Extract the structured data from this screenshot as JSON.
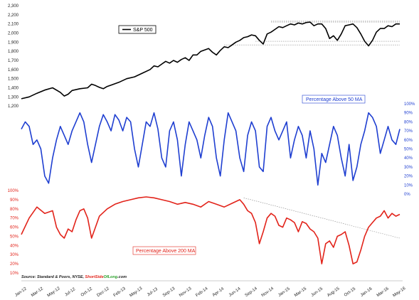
{
  "chart_data": [
    {
      "type": "line",
      "panel": "top",
      "series": [
        {
          "name": "S&P 500",
          "color": "#000000"
        }
      ],
      "ylim": [
        1100,
        2300
      ],
      "yticks": [
        "1,200",
        "1,300",
        "1,400",
        "1,500",
        "1,600",
        "1,700",
        "1,800",
        "1,900",
        "2,000",
        "2,100",
        "2,200",
        "2,300"
      ],
      "ytick_values": [
        1200,
        1300,
        1400,
        1500,
        1600,
        1700,
        1800,
        1900,
        2000,
        2100,
        2200,
        2300
      ],
      "points": [
        [
          0,
          1280
        ],
        [
          2,
          1300
        ],
        [
          4,
          1340
        ],
        [
          6,
          1375
        ],
        [
          8,
          1400
        ],
        [
          10,
          1350
        ],
        [
          11,
          1310
        ],
        [
          12,
          1330
        ],
        [
          13,
          1370
        ],
        [
          15,
          1390
        ],
        [
          17,
          1400
        ],
        [
          18,
          1440
        ],
        [
          19,
          1425
        ],
        [
          20,
          1405
        ],
        [
          21,
          1390
        ],
        [
          22,
          1415
        ],
        [
          23,
          1430
        ],
        [
          25,
          1460
        ],
        [
          27,
          1500
        ],
        [
          29,
          1520
        ],
        [
          31,
          1560
        ],
        [
          33,
          1600
        ],
        [
          34,
          1640
        ],
        [
          35,
          1630
        ],
        [
          36,
          1660
        ],
        [
          37,
          1690
        ],
        [
          38,
          1670
        ],
        [
          39,
          1700
        ],
        [
          40,
          1680
        ],
        [
          41,
          1710
        ],
        [
          42,
          1730
        ],
        [
          43,
          1700
        ],
        [
          44,
          1760
        ],
        [
          45,
          1760
        ],
        [
          46,
          1800
        ],
        [
          48,
          1830
        ],
        [
          49,
          1790
        ],
        [
          50,
          1760
        ],
        [
          51,
          1810
        ],
        [
          52,
          1850
        ],
        [
          53,
          1840
        ],
        [
          54,
          1870
        ],
        [
          55,
          1900
        ],
        [
          56,
          1920
        ],
        [
          57,
          1950
        ],
        [
          58,
          1960
        ],
        [
          59,
          1980
        ],
        [
          60,
          1970
        ],
        [
          61,
          1920
        ],
        [
          62,
          1880
        ],
        [
          63,
          1990
        ],
        [
          64,
          2010
        ],
        [
          65,
          2040
        ],
        [
          66,
          2070
        ],
        [
          67,
          2060
        ],
        [
          68,
          2080
        ],
        [
          69,
          2100
        ],
        [
          70,
          2090
        ],
        [
          71,
          2110
        ],
        [
          72,
          2100
        ],
        [
          73,
          2115
        ],
        [
          74,
          2120
        ],
        [
          75,
          2080
        ],
        [
          76,
          2100
        ],
        [
          77,
          2100
        ],
        [
          78,
          2050
        ],
        [
          79,
          1940
        ],
        [
          80,
          1970
        ],
        [
          81,
          1920
        ],
        [
          82,
          1990
        ],
        [
          83,
          2080
        ],
        [
          84,
          2090
        ],
        [
          85,
          2100
        ],
        [
          86,
          2060
        ],
        [
          87,
          1990
        ],
        [
          88,
          1910
        ],
        [
          89,
          1860
        ],
        [
          90,
          1920
        ],
        [
          91,
          2010
        ],
        [
          92,
          2050
        ],
        [
          93,
          2050
        ],
        [
          94,
          2080
        ],
        [
          95,
          2070
        ],
        [
          96,
          2100
        ],
        [
          97,
          2100
        ]
      ],
      "annotations": {
        "resistance": [
          2120,
          2130
        ],
        "support": [
          1870,
          1910
        ]
      }
    },
    {
      "type": "line",
      "panel": "middle",
      "series": [
        {
          "name": "Percentage Above 50 MA",
          "color": "#1f3fd1"
        }
      ],
      "ylim": [
        0,
        100
      ],
      "yticks": [
        "0%",
        "10%",
        "20%",
        "30%",
        "40%",
        "50%",
        "60%",
        "70%",
        "80%",
        "90%",
        "100%"
      ],
      "ytick_values": [
        0,
        10,
        20,
        30,
        40,
        50,
        60,
        70,
        80,
        90,
        100
      ],
      "points": [
        [
          0,
          72
        ],
        [
          1,
          80
        ],
        [
          2,
          75
        ],
        [
          3,
          55
        ],
        [
          4,
          60
        ],
        [
          5,
          50
        ],
        [
          6,
          20
        ],
        [
          7,
          12
        ],
        [
          8,
          40
        ],
        [
          9,
          60
        ],
        [
          10,
          75
        ],
        [
          11,
          65
        ],
        [
          12,
          55
        ],
        [
          13,
          70
        ],
        [
          14,
          80
        ],
        [
          15,
          90
        ],
        [
          16,
          80
        ],
        [
          17,
          55
        ],
        [
          18,
          35
        ],
        [
          19,
          55
        ],
        [
          20,
          75
        ],
        [
          21,
          88
        ],
        [
          22,
          80
        ],
        [
          23,
          70
        ],
        [
          24,
          88
        ],
        [
          25,
          82
        ],
        [
          26,
          70
        ],
        [
          27,
          85
        ],
        [
          28,
          80
        ],
        [
          29,
          50
        ],
        [
          30,
          30
        ],
        [
          31,
          55
        ],
        [
          32,
          80
        ],
        [
          33,
          75
        ],
        [
          34,
          90
        ],
        [
          35,
          72
        ],
        [
          36,
          40
        ],
        [
          37,
          30
        ],
        [
          38,
          70
        ],
        [
          39,
          80
        ],
        [
          40,
          60
        ],
        [
          41,
          20
        ],
        [
          42,
          55
        ],
        [
          43,
          80
        ],
        [
          44,
          70
        ],
        [
          45,
          60
        ],
        [
          46,
          40
        ],
        [
          47,
          65
        ],
        [
          48,
          85
        ],
        [
          49,
          75
        ],
        [
          50,
          40
        ],
        [
          51,
          20
        ],
        [
          52,
          60
        ],
        [
          53,
          90
        ],
        [
          54,
          80
        ],
        [
          55,
          70
        ],
        [
          56,
          40
        ],
        [
          57,
          25
        ],
        [
          58,
          65
        ],
        [
          59,
          80
        ],
        [
          60,
          70
        ],
        [
          61,
          30
        ],
        [
          62,
          25
        ],
        [
          63,
          75
        ],
        [
          64,
          85
        ],
        [
          65,
          70
        ],
        [
          66,
          60
        ],
        [
          67,
          70
        ],
        [
          68,
          80
        ],
        [
          69,
          40
        ],
        [
          70,
          60
        ],
        [
          71,
          75
        ],
        [
          72,
          65
        ],
        [
          73,
          40
        ],
        [
          74,
          70
        ],
        [
          75,
          50
        ],
        [
          76,
          10
        ],
        [
          77,
          45
        ],
        [
          78,
          35
        ],
        [
          79,
          55
        ],
        [
          80,
          75
        ],
        [
          81,
          65
        ],
        [
          82,
          40
        ],
        [
          83,
          20
        ],
        [
          84,
          55
        ],
        [
          85,
          15
        ],
        [
          86,
          30
        ],
        [
          87,
          55
        ],
        [
          88,
          70
        ],
        [
          89,
          90
        ],
        [
          90,
          85
        ],
        [
          91,
          75
        ],
        [
          92,
          45
        ],
        [
          93,
          60
        ],
        [
          94,
          75
        ],
        [
          95,
          60
        ],
        [
          96,
          55
        ],
        [
          97,
          72
        ]
      ]
    },
    {
      "type": "line",
      "panel": "bottom",
      "series": [
        {
          "name": "Percentage Above 200 MA",
          "color": "#e2231a"
        }
      ],
      "ylim": [
        10,
        100
      ],
      "yticks": [
        "10%",
        "20%",
        "30%",
        "40%",
        "50%",
        "60%",
        "70%",
        "80%",
        "90%",
        "100%"
      ],
      "ytick_values": [
        10,
        20,
        30,
        40,
        50,
        60,
        70,
        80,
        90,
        100
      ],
      "points": [
        [
          0,
          52
        ],
        [
          2,
          70
        ],
        [
          4,
          82
        ],
        [
          6,
          75
        ],
        [
          8,
          78
        ],
        [
          9,
          60
        ],
        [
          10,
          52
        ],
        [
          11,
          48
        ],
        [
          12,
          58
        ],
        [
          13,
          55
        ],
        [
          14,
          68
        ],
        [
          15,
          78
        ],
        [
          16,
          80
        ],
        [
          17,
          70
        ],
        [
          18,
          48
        ],
        [
          19,
          60
        ],
        [
          20,
          72
        ],
        [
          22,
          80
        ],
        [
          24,
          85
        ],
        [
          26,
          88
        ],
        [
          28,
          90
        ],
        [
          30,
          92
        ],
        [
          32,
          93
        ],
        [
          34,
          92
        ],
        [
          36,
          90
        ],
        [
          38,
          88
        ],
        [
          40,
          85
        ],
        [
          42,
          87
        ],
        [
          44,
          85
        ],
        [
          46,
          82
        ],
        [
          48,
          88
        ],
        [
          50,
          85
        ],
        [
          52,
          82
        ],
        [
          54,
          86
        ],
        [
          56,
          90
        ],
        [
          57,
          85
        ],
        [
          58,
          78
        ],
        [
          59,
          75
        ],
        [
          60,
          65
        ],
        [
          61,
          42
        ],
        [
          62,
          55
        ],
        [
          63,
          70
        ],
        [
          64,
          75
        ],
        [
          65,
          72
        ],
        [
          66,
          62
        ],
        [
          67,
          60
        ],
        [
          68,
          70
        ],
        [
          69,
          68
        ],
        [
          70,
          65
        ],
        [
          71,
          55
        ],
        [
          72,
          66
        ],
        [
          73,
          64
        ],
        [
          74,
          58
        ],
        [
          75,
          55
        ],
        [
          76,
          48
        ],
        [
          77,
          20
        ],
        [
          78,
          42
        ],
        [
          79,
          45
        ],
        [
          80,
          38
        ],
        [
          81,
          50
        ],
        [
          82,
          52
        ],
        [
          83,
          55
        ],
        [
          84,
          40
        ],
        [
          85,
          20
        ],
        [
          86,
          22
        ],
        [
          87,
          35
        ],
        [
          88,
          50
        ],
        [
          89,
          60
        ],
        [
          90,
          65
        ],
        [
          91,
          70
        ],
        [
          92,
          72
        ],
        [
          93,
          78
        ],
        [
          94,
          70
        ],
        [
          95,
          75
        ],
        [
          96,
          72
        ],
        [
          97,
          74
        ]
      ],
      "annotations": {
        "trendline": [
          [
            57,
            92
          ],
          [
            97,
            48
          ]
        ]
      }
    }
  ],
  "x_axis": {
    "labels": [
      "Jan-12",
      "Mar-12",
      "May-12",
      "Jul-12",
      "Oct-12",
      "Dec-12",
      "Feb-13",
      "May-13",
      "Jul-13",
      "Sep-13",
      "Nov-13",
      "Feb-14",
      "Apr-14",
      "Jun-14",
      "Sep-14",
      "Nov-14",
      "Jan-15",
      "Mar-15",
      "Jun-15",
      "Aug-15",
      "Oct-15",
      "Jan-16",
      "Mar-16",
      "May-16"
    ]
  },
  "source_text": {
    "prefix": "Source: Standard & Poors, NYSE, ",
    "short": "Short",
    "side": "Side",
    "of": "Of",
    "long": "Long",
    "suffix": ".com"
  },
  "colors": {
    "sp500": "#000000",
    "ma50": "#1f3fd1",
    "ma200": "#e2231a",
    "ticks_black": "#222222",
    "ticks_blue": "#1f3fd1",
    "ticks_red": "#e2231a",
    "src_red": "#e2231a",
    "src_green": "#2aa02a"
  }
}
